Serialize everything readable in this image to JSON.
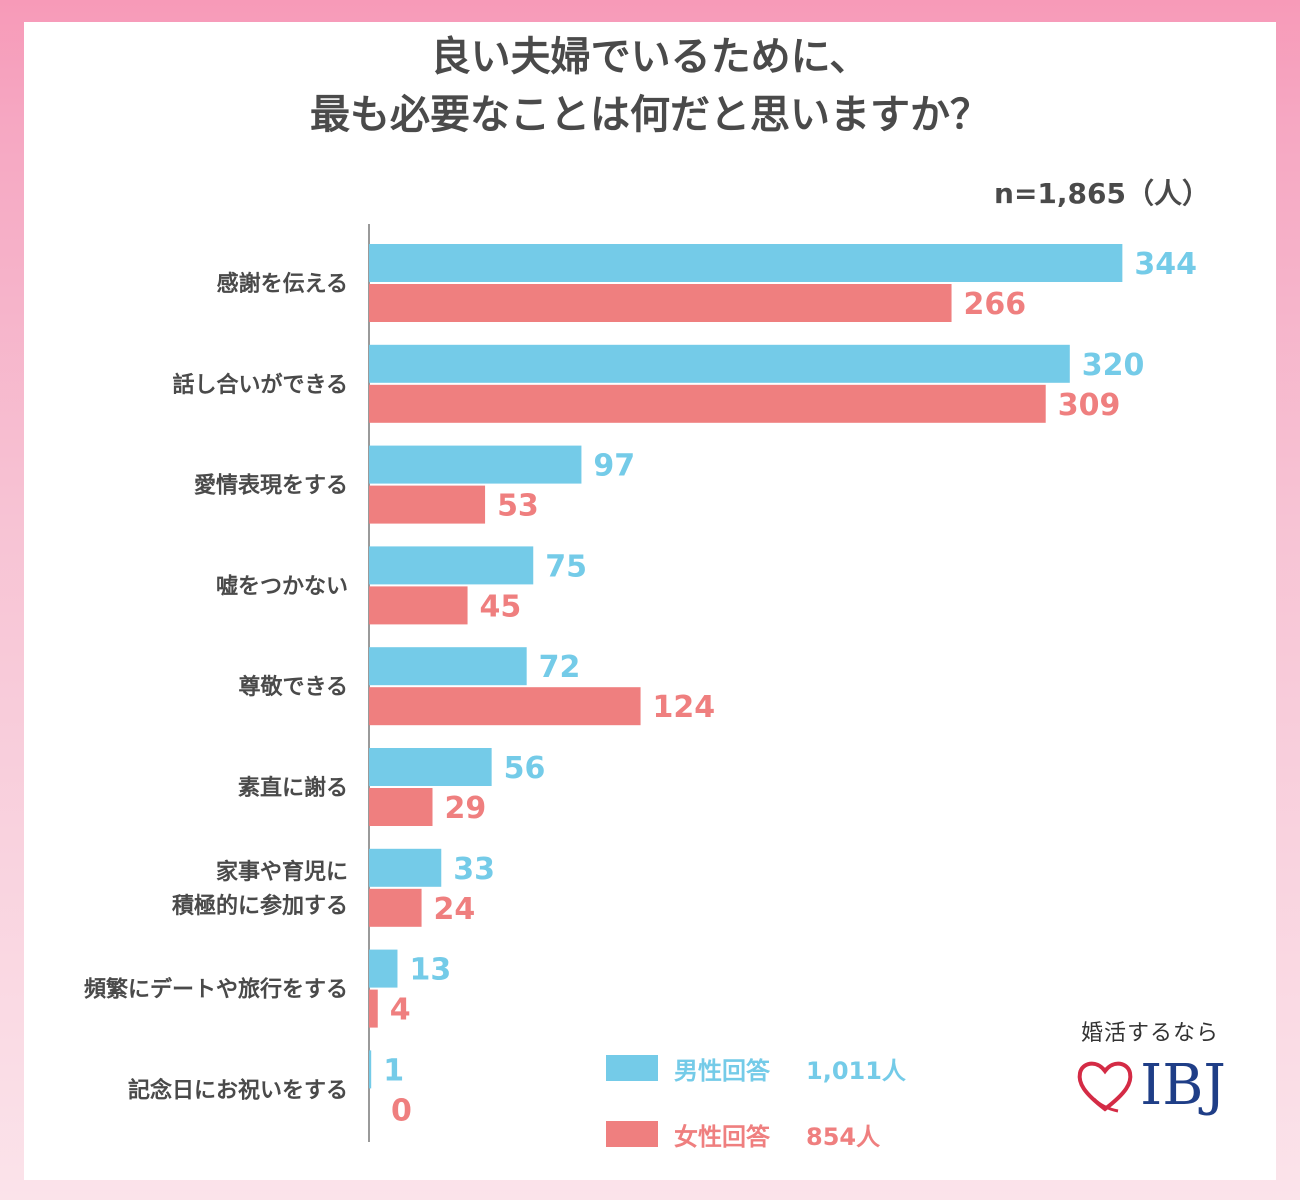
{
  "title_lines": [
    "良い夫婦でいるために、",
    "最も必要なことは何だと思いますか？"
  ],
  "sample_note": "n=1,865（人）",
  "colors": {
    "male": "#74cbe8",
    "female": "#ef7f7f",
    "title": "#4a4a4a",
    "brand": "#1f3e87",
    "heart": "#d42b45"
  },
  "chart_data": {
    "type": "bar",
    "orientation": "horizontal",
    "categories": [
      [
        "感謝を伝える"
      ],
      [
        "話し合いができる"
      ],
      [
        "愛情表現をする"
      ],
      [
        "嘘をつかない"
      ],
      [
        "尊敬できる"
      ],
      [
        "素直に謝る"
      ],
      [
        "家事や育児に",
        "積極的に参加する"
      ],
      [
        "頻繁にデートや旅行をする"
      ],
      [
        "記念日にお祝いをする"
      ]
    ],
    "series": [
      {
        "name": "男性回答",
        "values": [
          344,
          320,
          97,
          75,
          72,
          56,
          33,
          13,
          1
        ]
      },
      {
        "name": "女性回答",
        "values": [
          266,
          309,
          53,
          45,
          124,
          29,
          24,
          4,
          0
        ]
      }
    ],
    "grid": false,
    "legend_placement": "bottom"
  },
  "legend": [
    {
      "label": "男性回答",
      "count": "1,011人"
    },
    {
      "label": "女性回答",
      "count": "854人"
    }
  ],
  "brand": {
    "tagline": "婚活するなら",
    "name": "IBJ",
    "icon": "heart-icon"
  }
}
